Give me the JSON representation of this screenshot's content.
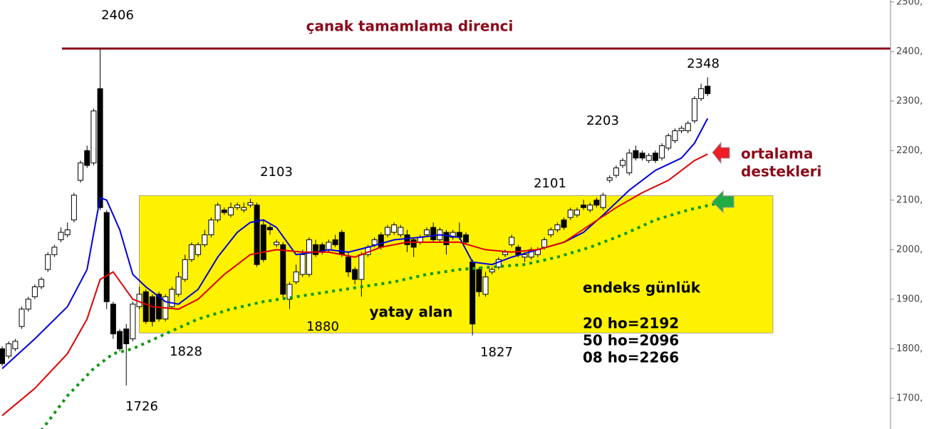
{
  "chart_data": {
    "type": "candlestick",
    "open": [
      1800,
      1785,
      1800,
      1845,
      1880,
      1905,
      1925,
      1960,
      1990,
      2020,
      2030,
      2060,
      2140,
      2200,
      2175,
      2325,
      2075,
      1890,
      1835,
      1840,
      1820,
      1885,
      1915,
      1905,
      1910,
      1860,
      1885,
      1910,
      1940,
      1980,
      1990,
      2010,
      2030,
      2060,
      2080,
      2070,
      2085,
      2080,
      2090,
      2090,
      2050,
      2045,
      2010,
      2010,
      1900,
      1935,
      1950,
      1950,
      2010,
      2010,
      2000,
      2020,
      2035,
      1985,
      1960,
      1940,
      1990,
      2010,
      2030,
      2030,
      2035,
      2030,
      2030,
      2020,
      2015,
      2030,
      2045,
      2020,
      2035,
      2025,
      2035,
      2030,
      1975,
      1960,
      1910,
      1955,
      1965,
      1990,
      2010,
      2005,
      1985,
      1985,
      1990,
      2005,
      2030,
      2040,
      2060,
      2065,
      2070,
      2090,
      2080,
      2100,
      2085,
      2140,
      2150,
      2170,
      2155,
      2200,
      2195,
      2180,
      2195,
      2185,
      2205,
      2220,
      2240,
      2240,
      2260,
      2305,
      2330
    ],
    "high": [
      1805,
      1815,
      1820,
      1885,
      1905,
      1930,
      1945,
      1995,
      2010,
      2045,
      2055,
      2115,
      2180,
      2210,
      2285,
      2406,
      2080,
      1895,
      1840,
      1850,
      1895,
      1925,
      1920,
      1910,
      1915,
      1910,
      1925,
      1955,
      1990,
      2015,
      2015,
      2040,
      2065,
      2095,
      2085,
      2095,
      2095,
      2095,
      2103,
      2095,
      2060,
      2050,
      2020,
      2015,
      1935,
      1970,
      2000,
      2025,
      2020,
      2015,
      2020,
      2030,
      2040,
      1995,
      1965,
      1995,
      2010,
      2025,
      2035,
      2050,
      2055,
      2050,
      2040,
      2025,
      2030,
      2045,
      2055,
      2045,
      2040,
      2040,
      2055,
      2035,
      1980,
      1965,
      1955,
      1965,
      1985,
      2000,
      2030,
      2010,
      1995,
      2005,
      2005,
      2025,
      2045,
      2055,
      2065,
      2085,
      2085,
      2101,
      2095,
      2105,
      2115,
      2150,
      2170,
      2185,
      2203,
      2210,
      2200,
      2195,
      2200,
      2215,
      2235,
      2245,
      2250,
      2260,
      2310,
      2335,
      2348
    ],
    "low": [
      1765,
      1780,
      1795,
      1840,
      1875,
      1900,
      1920,
      1955,
      1985,
      2015,
      2025,
      2055,
      2135,
      2165,
      2170,
      2080,
      1880,
      1820,
      1795,
      1726,
      1815,
      1880,
      1850,
      1845,
      1855,
      1855,
      1880,
      1905,
      1935,
      1975,
      1985,
      2005,
      2025,
      2055,
      2070,
      2065,
      2080,
      2075,
      2085,
      1965,
      1975,
      2030,
      2005,
      1900,
      1880,
      1930,
      1945,
      1945,
      1985,
      1990,
      1995,
      2005,
      1985,
      1945,
      1930,
      1905,
      1985,
      2005,
      2000,
      2025,
      2030,
      2025,
      1995,
      1985,
      2010,
      2025,
      2015,
      2015,
      1990,
      2020,
      2020,
      2010,
      1827,
      1905,
      1905,
      1950,
      1960,
      1985,
      2005,
      1985,
      1975,
      1980,
      1985,
      2000,
      2025,
      2035,
      2040,
      2060,
      2065,
      2080,
      2075,
      2085,
      2080,
      2135,
      2145,
      2165,
      2150,
      2180,
      2180,
      2175,
      2175,
      2180,
      2200,
      2215,
      2235,
      2235,
      2255,
      2300,
      2310
    ],
    "close": [
      1770,
      1810,
      1815,
      1880,
      1900,
      1925,
      1940,
      1990,
      2005,
      2035,
      2040,
      2110,
      2175,
      2170,
      2280,
      2085,
      1895,
      1830,
      1800,
      1810,
      1890,
      1910,
      1855,
      1855,
      1860,
      1905,
      1920,
      1945,
      1980,
      2010,
      2010,
      2030,
      2060,
      2090,
      2075,
      2085,
      2090,
      2085,
      2095,
      1970,
      1980,
      2040,
      2015,
      1910,
      1930,
      1955,
      1990,
      2020,
      1990,
      1995,
      2015,
      2010,
      1990,
      1955,
      1940,
      1990,
      2005,
      2020,
      2005,
      2045,
      2050,
      2045,
      2010,
      2005,
      2025,
      2040,
      2020,
      2040,
      2010,
      2035,
      2025,
      2015,
      1850,
      1915,
      1945,
      1960,
      1980,
      1995,
      2025,
      1990,
      1990,
      2000,
      2000,
      2020,
      2040,
      2050,
      2045,
      2080,
      2080,
      2085,
      2090,
      2090,
      2110,
      2145,
      2165,
      2180,
      2195,
      2185,
      2185,
      2190,
      2180,
      2210,
      2230,
      2240,
      2245,
      2255,
      2305,
      2325,
      2315
    ],
    "series": [
      {
        "name": "08 ho",
        "color": "#0000dd",
        "style": "solid",
        "x": [
          0,
          5,
          10,
          13,
          15,
          16,
          18,
          20,
          22,
          25,
          27,
          30,
          33,
          36,
          38,
          40,
          42,
          45,
          48,
          50,
          53,
          56,
          60,
          64,
          67,
          70,
          72,
          75,
          78,
          82,
          86,
          89,
          92,
          96,
          100,
          104,
          106,
          108
        ],
        "values": [
          1760,
          1820,
          1885,
          1960,
          2105,
          2100,
          2040,
          1950,
          1925,
          1895,
          1890,
          1920,
          1985,
          2035,
          2055,
          2060,
          2045,
          1990,
          1995,
          2000,
          1995,
          2005,
          2020,
          2025,
          2030,
          2025,
          1975,
          1970,
          1985,
          2000,
          2015,
          2035,
          2070,
          2120,
          2160,
          2185,
          2215,
          2265
        ]
      },
      {
        "name": "20 ho",
        "color": "#dd0000",
        "style": "solid",
        "x": [
          0,
          5,
          10,
          13,
          15,
          17,
          20,
          23,
          27,
          30,
          34,
          38,
          42,
          46,
          50,
          54,
          58,
          62,
          66,
          70,
          74,
          78,
          82,
          86,
          90,
          94,
          98,
          102,
          106,
          108
        ],
        "values": [
          1665,
          1720,
          1790,
          1860,
          1940,
          1955,
          1900,
          1885,
          1880,
          1900,
          1950,
          1990,
          2000,
          1995,
          1995,
          1985,
          2005,
          2015,
          2015,
          2015,
          2000,
          1995,
          2000,
          2015,
          2050,
          2085,
          2115,
          2140,
          2180,
          2193
        ]
      },
      {
        "name": "50 ho",
        "color": "#119911",
        "style": "dotted",
        "x": [
          6,
          10,
          14,
          17,
          20,
          25,
          30,
          35,
          40,
          45,
          50,
          55,
          60,
          65,
          70,
          75,
          80,
          85,
          90,
          95,
          100,
          105,
          110
        ],
        "values": [
          1635,
          1705,
          1760,
          1790,
          1800,
          1830,
          1860,
          1880,
          1895,
          1905,
          1915,
          1925,
          1935,
          1950,
          1960,
          1965,
          1970,
          1985,
          2005,
          2030,
          2060,
          2080,
          2095
        ]
      }
    ],
    "resistance": 2406,
    "resistance_label": "çanak tamamlama direnci",
    "resistance_color": "#8b0a1a",
    "range_box": {
      "x": [
        21,
        118
      ],
      "y": [
        1832,
        2109
      ],
      "color": "#fff200",
      "label": "yatay alan"
    },
    "annotations": [
      "2406",
      "2103",
      "2101",
      "2203",
      "2348",
      "1828",
      "1726",
      "1880",
      "1827"
    ],
    "info": [
      "endeks günlük",
      "20 ho=2192",
      "50 ho=2096",
      "08 ho=2266"
    ],
    "side_note": [
      "ortalama",
      "destekleri"
    ],
    "xlim": [
      -0.33,
      136
    ],
    "ylim": [
      1638,
      2504
    ],
    "yticks": [
      {
        "value": 1700,
        "label": "1700,"
      },
      {
        "value": 1800,
        "label": "1800,"
      },
      {
        "value": 1900,
        "label": "1900,"
      },
      {
        "value": 2000,
        "label": "2000,"
      },
      {
        "value": 2100,
        "label": "2100,"
      },
      {
        "value": 2200,
        "label": "2200,"
      },
      {
        "value": 2300,
        "label": "2300,"
      },
      {
        "value": 2400,
        "label": "2400,"
      },
      {
        "value": 2500,
        "label": "2500,"
      }
    ]
  }
}
